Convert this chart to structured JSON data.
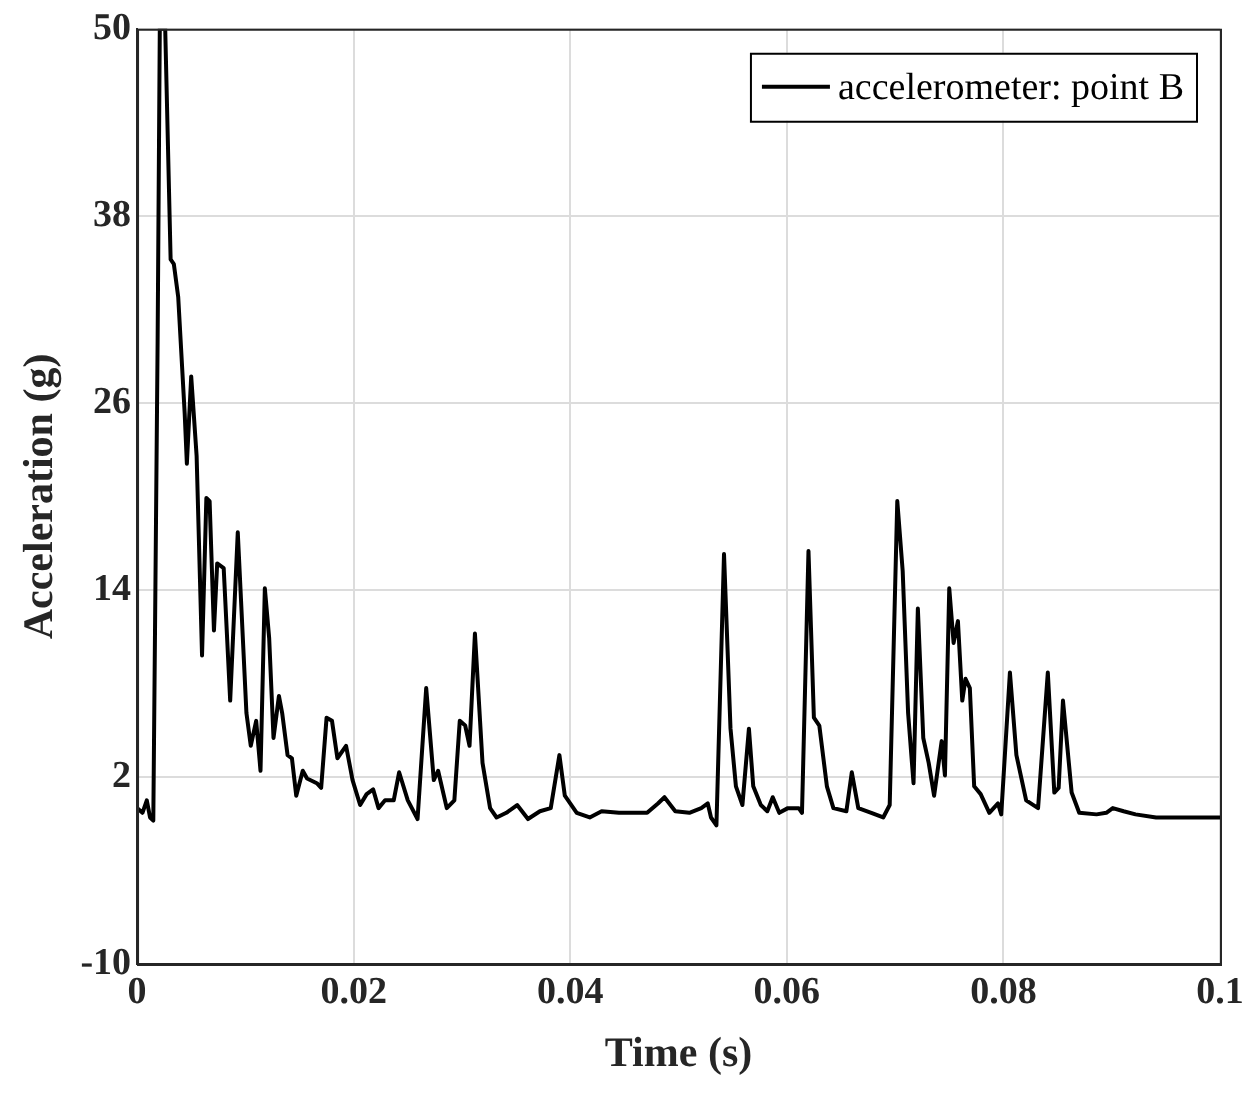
{
  "chart_data": {
    "type": "line",
    "xlabel": "Time (s)",
    "ylabel": "Acceleration (g)",
    "xlim": [
      0,
      0.1
    ],
    "xticks": [
      0,
      0.02,
      0.04,
      0.06,
      0.08,
      0.1
    ],
    "ylim": [
      -10,
      50
    ],
    "yticks": [
      -10,
      2,
      14,
      26,
      38,
      50
    ],
    "grid": true,
    "legend": "top right",
    "marker": "none",
    "line_style": "solid",
    "series": [
      {
        "name": "accelerometer: point B",
        "color": "#000000",
        "x": [
          0,
          0.0005,
          0.0009,
          0.0012,
          0.0015,
          0.0019,
          0.0021,
          0.0026,
          0.0031,
          0.0034,
          0.0038,
          0.0044,
          0.0046,
          0.005,
          0.0055,
          0.006,
          0.0064,
          0.0067,
          0.0071,
          0.0074,
          0.008,
          0.0086,
          0.0093,
          0.0101,
          0.0105,
          0.011,
          0.0114,
          0.0118,
          0.0122,
          0.0126,
          0.0131,
          0.0134,
          0.0139,
          0.0143,
          0.0147,
          0.0153,
          0.0157,
          0.0166,
          0.017,
          0.0175,
          0.018,
          0.0185,
          0.0193,
          0.0199,
          0.0206,
          0.0212,
          0.0218,
          0.0223,
          0.0229,
          0.0237,
          0.0242,
          0.025,
          0.0259,
          0.0267,
          0.0274,
          0.0278,
          0.0286,
          0.0293,
          0.0298,
          0.0303,
          0.0307,
          0.0312,
          0.0319,
          0.0326,
          0.0332,
          0.0341,
          0.0351,
          0.0361,
          0.0372,
          0.0382,
          0.039,
          0.0395,
          0.0406,
          0.0418,
          0.0429,
          0.0445,
          0.046,
          0.0471,
          0.0481,
          0.0487,
          0.0497,
          0.051,
          0.0521,
          0.0527,
          0.053,
          0.0535,
          0.0542,
          0.0548,
          0.0553,
          0.0559,
          0.0565,
          0.0569,
          0.0576,
          0.0582,
          0.0587,
          0.0593,
          0.0601,
          0.0611,
          0.0614,
          0.062,
          0.0625,
          0.063,
          0.0637,
          0.0643,
          0.0655,
          0.066,
          0.0666,
          0.0678,
          0.0689,
          0.0695,
          0.0702,
          0.0707,
          0.0712,
          0.0717,
          0.0721,
          0.0726,
          0.0731,
          0.0736,
          0.0743,
          0.0746,
          0.075,
          0.0754,
          0.0758,
          0.0762,
          0.0765,
          0.0769,
          0.0773,
          0.0779,
          0.0787,
          0.0795,
          0.0798,
          0.0806,
          0.0812,
          0.0821,
          0.0832,
          0.0841,
          0.0847,
          0.0851,
          0.0855,
          0.0863,
          0.087,
          0.0886,
          0.0895,
          0.0901,
          0.0911,
          0.0922,
          0.0941,
          0.1
        ],
        "values": [
          0,
          -0.3,
          0.5,
          -0.6,
          -0.8,
          30,
          50,
          50,
          35.2,
          34.9,
          32.8,
          25.3,
          22.1,
          27.7,
          22.6,
          9.8,
          19.9,
          19.7,
          11.4,
          15.7,
          15.4,
          6.9,
          17.7,
          6.1,
          4.0,
          5.6,
          2.4,
          14.1,
          10.9,
          4.5,
          7.2,
          6.1,
          3.4,
          3.2,
          0.8,
          2.4,
          1.9,
          1.6,
          1.3,
          5.8,
          5.6,
          3.2,
          4.0,
          1.8,
          0.2,
          0.9,
          1.2,
          0.0,
          0.5,
          0.5,
          2.3,
          0.5,
          -0.7,
          7.7,
          1.8,
          2.4,
          0.0,
          0.5,
          5.6,
          5.3,
          4.0,
          11.2,
          2.9,
          0.0,
          -0.6,
          -0.3,
          0.2,
          -0.7,
          -0.2,
          0.0,
          3.4,
          0.8,
          -0.3,
          -0.6,
          -0.2,
          -0.3,
          -0.3,
          -0.3,
          0.3,
          0.7,
          -0.2,
          -0.3,
          0.0,
          0.3,
          -0.6,
          -1.1,
          16.3,
          5.1,
          1.4,
          0.2,
          5.1,
          1.4,
          0.2,
          -0.2,
          0.7,
          -0.3,
          0.0,
          0.0,
          -0.3,
          16.5,
          5.8,
          5.3,
          1.4,
          0.0,
          -0.2,
          2.3,
          0.0,
          -0.3,
          -0.6,
          0.2,
          19.7,
          15.2,
          6.1,
          1.6,
          12.8,
          4.5,
          2.9,
          0.8,
          4.3,
          2.1,
          14.1,
          10.6,
          12.0,
          6.9,
          8.3,
          7.7,
          1.4,
          0.9,
          -0.3,
          0.3,
          -0.4,
          8.7,
          3.4,
          0.5,
          0.0,
          8.7,
          1.0,
          1.3,
          6.9,
          1.0,
          -0.3,
          -0.4,
          -0.3,
          0.0,
          -0.2,
          -0.4,
          -0.6,
          -0.6
        ]
      }
    ]
  }
}
